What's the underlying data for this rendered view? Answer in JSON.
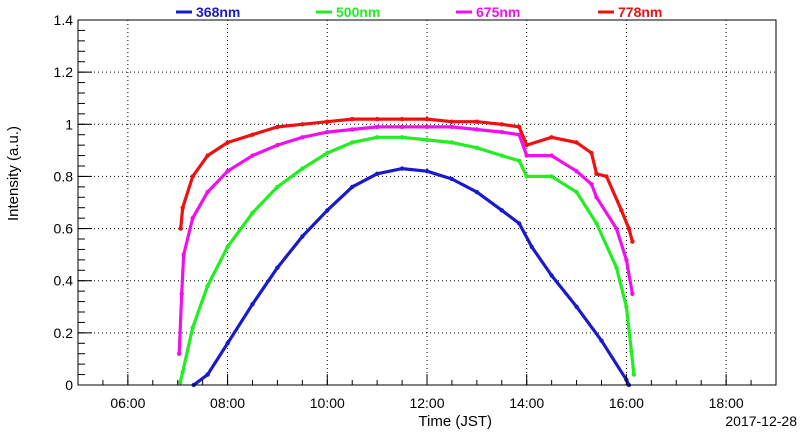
{
  "chart_data": {
    "type": "scatter",
    "title": "",
    "xlabel": "Time (JST)",
    "ylabel": "Intensity (a.u.)",
    "date_label": "2017-12-28",
    "x_unit": "hours",
    "xlim": [
      5.0,
      19.0
    ],
    "ylim": [
      0,
      1.4
    ],
    "x_ticks": [
      {
        "value": 6,
        "label": "06:00"
      },
      {
        "value": 8,
        "label": "08:00"
      },
      {
        "value": 10,
        "label": "10:00"
      },
      {
        "value": 12,
        "label": "12:00"
      },
      {
        "value": 14,
        "label": "14:00"
      },
      {
        "value": 16,
        "label": "16:00"
      },
      {
        "value": 18,
        "label": "18:00"
      }
    ],
    "y_ticks": [
      {
        "value": 0,
        "label": "0"
      },
      {
        "value": 0.2,
        "label": "0.2"
      },
      {
        "value": 0.4,
        "label": "0.4"
      },
      {
        "value": 0.6,
        "label": "0.6"
      },
      {
        "value": 0.8,
        "label": "0.8"
      },
      {
        "value": 1.0,
        "label": "1"
      },
      {
        "value": 1.2,
        "label": "1.2"
      },
      {
        "value": 1.4,
        "label": "1.4"
      }
    ],
    "grid": true,
    "legend_position": "top",
    "series": [
      {
        "name": "368nm",
        "color": "#1a1acc",
        "points": [
          [
            7.32,
            0.0
          ],
          [
            7.6,
            0.04
          ],
          [
            8.0,
            0.16
          ],
          [
            8.5,
            0.31
          ],
          [
            9.0,
            0.45
          ],
          [
            9.5,
            0.57
          ],
          [
            10.0,
            0.67
          ],
          [
            10.5,
            0.76
          ],
          [
            11.0,
            0.81
          ],
          [
            11.5,
            0.83
          ],
          [
            12.0,
            0.82
          ],
          [
            12.5,
            0.79
          ],
          [
            13.0,
            0.74
          ],
          [
            13.5,
            0.67
          ],
          [
            13.85,
            0.62
          ],
          [
            14.1,
            0.53
          ],
          [
            14.5,
            0.42
          ],
          [
            15.0,
            0.3
          ],
          [
            15.5,
            0.17
          ],
          [
            16.0,
            0.02
          ],
          [
            16.05,
            0.0
          ]
        ]
      },
      {
        "name": "500nm",
        "color": "#22ee22",
        "points": [
          [
            7.05,
            0.01
          ],
          [
            7.1,
            0.05
          ],
          [
            7.3,
            0.22
          ],
          [
            7.6,
            0.38
          ],
          [
            8.0,
            0.53
          ],
          [
            8.5,
            0.66
          ],
          [
            9.0,
            0.76
          ],
          [
            9.5,
            0.83
          ],
          [
            10.0,
            0.89
          ],
          [
            10.5,
            0.93
          ],
          [
            11.0,
            0.95
          ],
          [
            11.5,
            0.95
          ],
          [
            12.0,
            0.94
          ],
          [
            12.5,
            0.93
          ],
          [
            13.0,
            0.91
          ],
          [
            13.5,
            0.88
          ],
          [
            13.85,
            0.86
          ],
          [
            14.0,
            0.8
          ],
          [
            14.5,
            0.8
          ],
          [
            15.0,
            0.74
          ],
          [
            15.4,
            0.62
          ],
          [
            15.8,
            0.45
          ],
          [
            16.0,
            0.3
          ],
          [
            16.1,
            0.13
          ],
          [
            16.15,
            0.04
          ]
        ]
      },
      {
        "name": "675nm",
        "color": "#ee11ee",
        "points": [
          [
            7.03,
            0.12
          ],
          [
            7.08,
            0.35
          ],
          [
            7.12,
            0.5
          ],
          [
            7.3,
            0.64
          ],
          [
            7.6,
            0.74
          ],
          [
            8.0,
            0.82
          ],
          [
            8.5,
            0.88
          ],
          [
            9.0,
            0.92
          ],
          [
            9.5,
            0.95
          ],
          [
            10.0,
            0.97
          ],
          [
            10.5,
            0.98
          ],
          [
            11.0,
            0.99
          ],
          [
            11.5,
            0.99
          ],
          [
            12.0,
            0.99
          ],
          [
            12.5,
            0.99
          ],
          [
            13.0,
            0.98
          ],
          [
            13.5,
            0.97
          ],
          [
            13.85,
            0.96
          ],
          [
            14.0,
            0.88
          ],
          [
            14.5,
            0.88
          ],
          [
            15.0,
            0.82
          ],
          [
            15.3,
            0.77
          ],
          [
            15.4,
            0.72
          ],
          [
            15.8,
            0.6
          ],
          [
            16.0,
            0.48
          ],
          [
            16.12,
            0.35
          ]
        ]
      },
      {
        "name": "778nm",
        "color": "#ee1111",
        "points": [
          [
            7.06,
            0.6
          ],
          [
            7.1,
            0.68
          ],
          [
            7.3,
            0.8
          ],
          [
            7.6,
            0.88
          ],
          [
            8.0,
            0.93
          ],
          [
            8.5,
            0.96
          ],
          [
            9.0,
            0.99
          ],
          [
            9.5,
            1.0
          ],
          [
            10.0,
            1.01
          ],
          [
            10.5,
            1.02
          ],
          [
            11.0,
            1.02
          ],
          [
            11.5,
            1.02
          ],
          [
            12.0,
            1.02
          ],
          [
            12.5,
            1.01
          ],
          [
            13.0,
            1.01
          ],
          [
            13.5,
            1.0
          ],
          [
            13.85,
            0.99
          ],
          [
            14.0,
            0.92
          ],
          [
            14.5,
            0.95
          ],
          [
            15.0,
            0.93
          ],
          [
            15.3,
            0.89
          ],
          [
            15.4,
            0.81
          ],
          [
            15.6,
            0.8
          ],
          [
            15.9,
            0.67
          ],
          [
            16.05,
            0.6
          ],
          [
            16.12,
            0.55
          ]
        ]
      }
    ]
  }
}
